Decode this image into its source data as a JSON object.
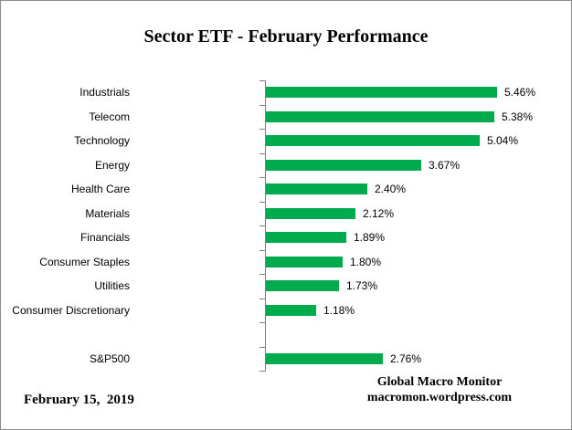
{
  "title": "Sector ETF - February Performance",
  "footer": {
    "date": "February 15,  2019",
    "credit_line1": "Global Macro Monitor",
    "credit_line2": "macromon.wordpress.com"
  },
  "colors": {
    "bar_green": "#00AB4E",
    "axis_gray": "#808080",
    "text": "#000000"
  },
  "chart_data": {
    "type": "bar",
    "orientation": "horizontal",
    "title": "Sector ETF - February Performance",
    "xlabel": "",
    "ylabel": "",
    "xlim": [
      0,
      6.6
    ],
    "grid": false,
    "legend": false,
    "categories": [
      "Industrials",
      "Telecom",
      "Technology",
      "Energy",
      "Health Care",
      "Materials",
      "Financials",
      "Consumer Staples",
      "Utilities",
      "Consumer Discretionary",
      "",
      "S&P500"
    ],
    "values": [
      5.46,
      5.38,
      5.04,
      3.67,
      2.4,
      2.12,
      1.89,
      1.8,
      1.73,
      1.18,
      null,
      2.76
    ],
    "value_labels": [
      "5.46%",
      "5.38%",
      "5.04%",
      "3.67%",
      "2.40%",
      "2.12%",
      "1.89%",
      "1.80%",
      "1.73%",
      "1.18%",
      "",
      "2.76%"
    ]
  }
}
